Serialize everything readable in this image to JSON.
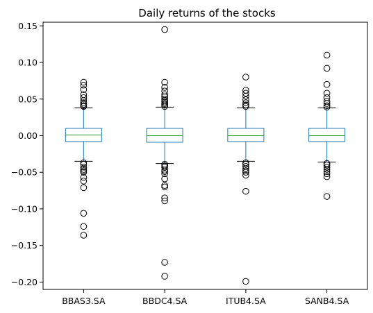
{
  "chart_data": {
    "type": "box",
    "title": "Daily returns of the stocks",
    "xlabel": "",
    "ylabel": "",
    "ylim": [
      -0.21,
      0.155
    ],
    "yticks": [
      0.15,
      0.1,
      0.05,
      0.0,
      -0.05,
      -0.1,
      -0.15,
      -0.2
    ],
    "ytick_labels": [
      "0.15",
      "0.10",
      "0.05",
      "0.00",
      "−0.05",
      "−0.10",
      "−0.15",
      "−0.20"
    ],
    "grid": false,
    "series": [
      {
        "name": "BBAS3.SA",
        "q1": -0.008,
        "median": 0.001,
        "q3": 0.01,
        "whisker_low": -0.035,
        "whisker_high": 0.038,
        "outliers": [
          0.073,
          0.069,
          0.063,
          0.056,
          0.052,
          0.048,
          0.045,
          0.043,
          0.041,
          0.04,
          -0.037,
          -0.039,
          -0.043,
          -0.046,
          -0.048,
          -0.05,
          -0.057,
          -0.062,
          -0.071,
          -0.106,
          -0.124,
          -0.136
        ]
      },
      {
        "name": "BBDC4.SA",
        "q1": -0.009,
        "median": 0.0,
        "q3": 0.01,
        "whisker_low": -0.038,
        "whisker_high": 0.039,
        "outliers": [
          0.145,
          0.073,
          0.066,
          0.061,
          0.056,
          0.053,
          0.05,
          0.048,
          0.046,
          0.044,
          0.042,
          0.04,
          -0.039,
          -0.041,
          -0.043,
          -0.047,
          -0.049,
          -0.052,
          -0.059,
          -0.068,
          -0.07,
          -0.085,
          -0.089,
          -0.173,
          -0.192
        ]
      },
      {
        "name": "ITUB4.SA",
        "q1": -0.008,
        "median": 0.0,
        "q3": 0.01,
        "whisker_low": -0.035,
        "whisker_high": 0.038,
        "outliers": [
          0.08,
          0.062,
          0.058,
          0.054,
          0.049,
          0.045,
          0.042,
          0.04,
          -0.037,
          -0.039,
          -0.042,
          -0.045,
          -0.048,
          -0.05,
          -0.054,
          -0.076,
          -0.199
        ]
      },
      {
        "name": "SANB4.SA",
        "q1": -0.008,
        "median": 0.0,
        "q3": 0.01,
        "whisker_low": -0.036,
        "whisker_high": 0.038,
        "outliers": [
          0.11,
          0.092,
          0.07,
          0.058,
          0.052,
          0.047,
          0.044,
          0.041,
          0.039,
          -0.038,
          -0.04,
          -0.043,
          -0.046,
          -0.049,
          -0.052,
          -0.056,
          -0.083
        ]
      }
    ]
  },
  "colors": {
    "box": "#1f77b4",
    "median": "#2ca02c",
    "whisker_cap": "#000000",
    "outlier_edge": "#000000",
    "axes": "#000000"
  }
}
